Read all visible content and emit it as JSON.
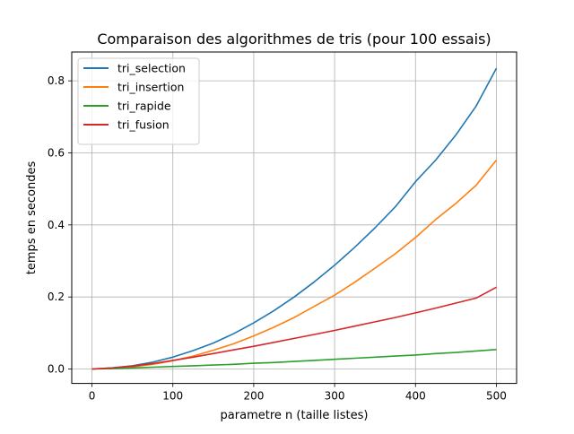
{
  "chart_data": {
    "type": "line",
    "title": "Comparaison des algorithmes de tris (pour 100 essais)",
    "xlabel": "parametre n (taille listes)",
    "ylabel": "temps en secondes",
    "xlim": [
      -25,
      525
    ],
    "ylim": [
      -0.04,
      0.88
    ],
    "xticks": [
      0,
      100,
      200,
      300,
      400,
      500
    ],
    "xtick_labels": [
      "0",
      "100",
      "200",
      "300",
      "400",
      "500"
    ],
    "yticks": [
      0.0,
      0.2,
      0.4,
      0.6,
      0.8
    ],
    "ytick_labels": [
      "0.0",
      "0.2",
      "0.4",
      "0.6",
      "0.8"
    ],
    "grid": true,
    "legend_position": "upper-left",
    "x": [
      0,
      25,
      50,
      75,
      100,
      125,
      150,
      175,
      200,
      225,
      250,
      275,
      300,
      325,
      350,
      375,
      400,
      425,
      450,
      475,
      500
    ],
    "series": [
      {
        "name": "tri_selection",
        "color": "#1f77b4",
        "values": [
          0.0,
          0.003,
          0.009,
          0.019,
          0.033,
          0.051,
          0.072,
          0.098,
          0.128,
          0.162,
          0.2,
          0.242,
          0.288,
          0.338,
          0.392,
          0.45,
          0.52,
          0.58,
          0.65,
          0.73,
          0.835
        ]
      },
      {
        "name": "tri_insertion",
        "color": "#ff7f0e",
        "values": [
          0.0,
          0.002,
          0.006,
          0.013,
          0.023,
          0.036,
          0.052,
          0.07,
          0.092,
          0.116,
          0.143,
          0.174,
          0.205,
          0.241,
          0.28,
          0.32,
          0.365,
          0.415,
          0.46,
          0.51,
          0.58
        ]
      },
      {
        "name": "tri_rapide",
        "color": "#2ca02c",
        "values": [
          0.0,
          0.001,
          0.003,
          0.005,
          0.007,
          0.009,
          0.011,
          0.013,
          0.016,
          0.018,
          0.021,
          0.024,
          0.027,
          0.03,
          0.033,
          0.036,
          0.039,
          0.043,
          0.046,
          0.05,
          0.054
        ]
      },
      {
        "name": "tri_fusion",
        "color": "#d62728",
        "values": [
          0.0,
          0.003,
          0.008,
          0.015,
          0.024,
          0.033,
          0.043,
          0.053,
          0.063,
          0.074,
          0.085,
          0.096,
          0.107,
          0.119,
          0.131,
          0.143,
          0.156,
          0.169,
          0.183,
          0.197,
          0.227
        ]
      }
    ]
  }
}
